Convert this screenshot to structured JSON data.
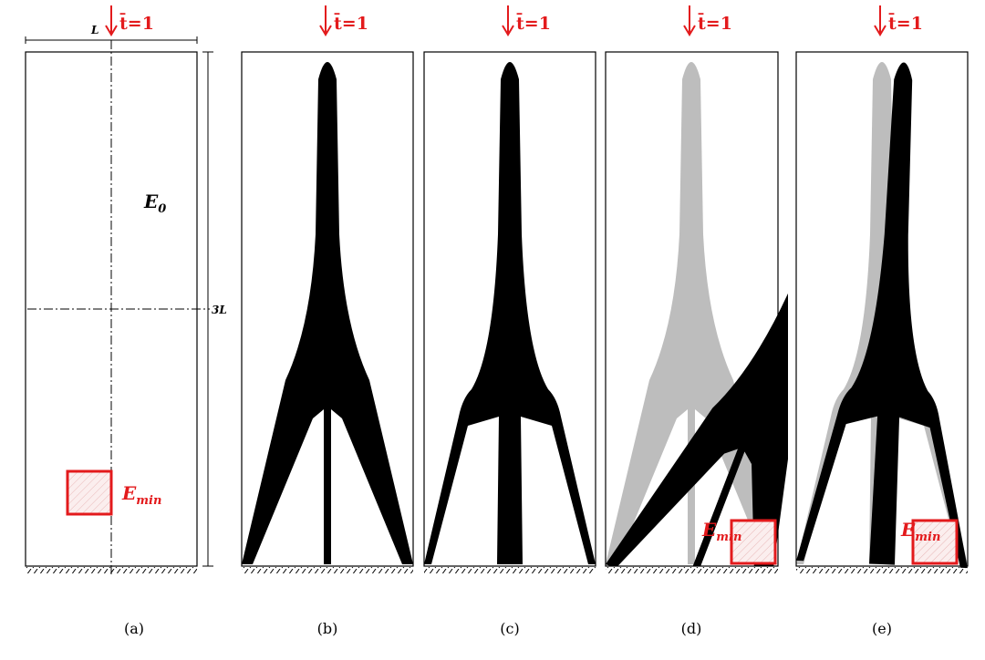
{
  "panels": [
    {
      "load": "t̄=1",
      "dimension_width": "L",
      "dimension_height": "3L",
      "material": {
        "symbol": "E",
        "subscript": "0"
      },
      "void": {
        "symbol": "E",
        "subscript": "min"
      },
      "caption": "(a)"
    },
    {
      "load": "t̄=1",
      "caption": "(b)"
    },
    {
      "load": "t̄=1",
      "caption": "(c)"
    },
    {
      "load": "t̄=1",
      "void": {
        "symbol": "E",
        "subscript": "min"
      },
      "caption": "(d)"
    },
    {
      "load": "t̄=1",
      "void": {
        "symbol": "E",
        "subscript": "min"
      },
      "caption": "(e)"
    }
  ]
}
